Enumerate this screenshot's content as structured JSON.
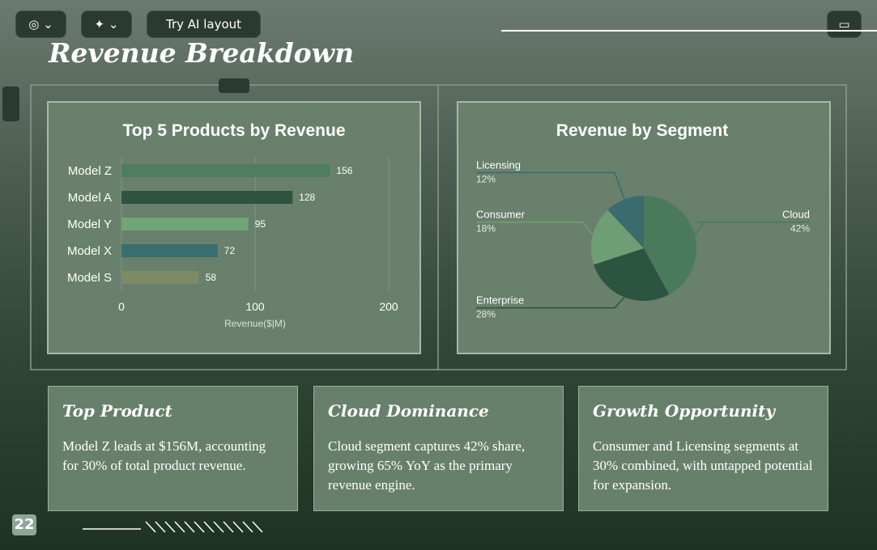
{
  "toolbar": {
    "ai_button": "Try AI layout"
  },
  "slide_title": "Revenue Breakdown",
  "chart_data": [
    {
      "type": "bar",
      "orientation": "horizontal",
      "title": "Top 5 Products by Revenue",
      "categories": [
        "Model Z",
        "Model A",
        "Model Y",
        "Model X",
        "Model S"
      ],
      "values": [
        156,
        128,
        95,
        72,
        58
      ],
      "colors": [
        "#4f7d5e",
        "#2d5440",
        "#6fa577",
        "#3a6e70",
        "#7d8a66"
      ],
      "xlim": [
        0,
        200
      ],
      "xticks": [
        0,
        100,
        200
      ],
      "xlabel": "Revenue($|M)",
      "grid": true
    },
    {
      "type": "pie",
      "title": "Revenue by Segment",
      "categories": [
        "Cloud",
        "Enterprise",
        "Consumer",
        "Licensing"
      ],
      "values": [
        42,
        28,
        18,
        12
      ],
      "value_labels": [
        "42%",
        "28%",
        "18%",
        "12%"
      ],
      "colors": [
        "#4a7a5c",
        "#2d5440",
        "#6f9e74",
        "#3a6b6e"
      ]
    }
  ],
  "cards": [
    {
      "title": "Top Product",
      "body": "Model Z leads at $156M, accounting for 30% of total product revenue."
    },
    {
      "title": "Cloud Dominance",
      "body": "Cloud segment captures 42% share, growing 65% YoY as the primary revenue engine."
    },
    {
      "title": "Growth Opportunity",
      "body": "Consumer and Licensing segments at 30% combined, with untapped potential for expansion."
    }
  ],
  "page_number": "22"
}
